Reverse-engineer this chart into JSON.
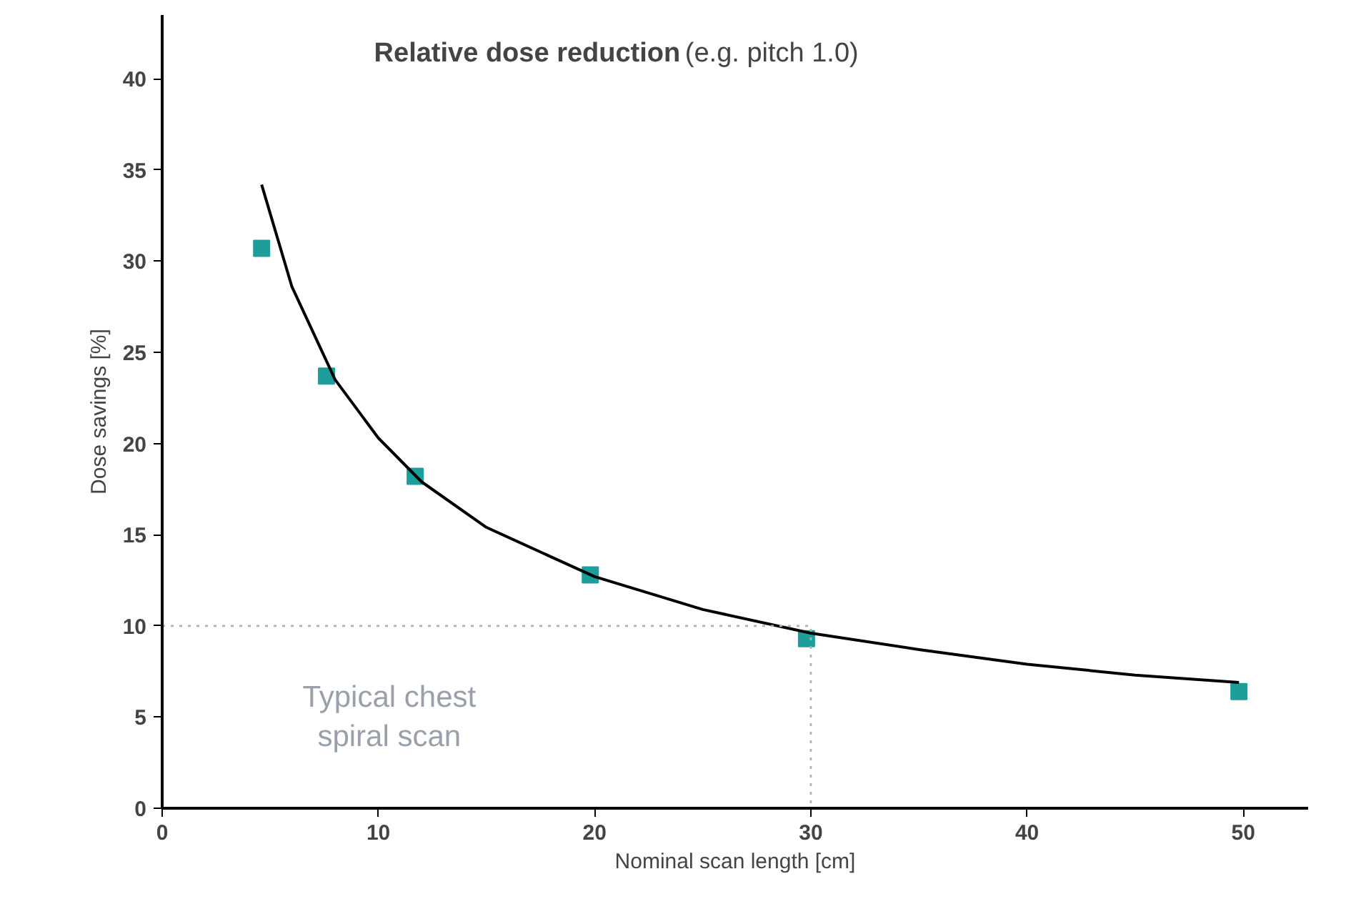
{
  "chart_data": {
    "type": "scatter",
    "title": "Relative dose reduction",
    "subtitle": "(e.g. pitch 1.0)",
    "xlabel": "Nominal scan length [cm]",
    "ylabel": "Dose savings [%]",
    "xlim": [
      0,
      53
    ],
    "ylim": [
      0,
      43.5
    ],
    "xticks": [
      0,
      10,
      20,
      30,
      40,
      50
    ],
    "yticks": [
      0,
      5,
      10,
      15,
      20,
      25,
      30,
      35,
      40
    ],
    "grid": false,
    "marker": "square",
    "annotations": [
      "Typical chest\nspiral scan"
    ],
    "series": [
      {
        "color": "#1e9e9a",
        "x": [
          4.6,
          7.6,
          11.7,
          19.8,
          29.8,
          49.8
        ],
        "values": [
          30.7,
          23.7,
          18.2,
          12.8,
          9.3,
          6.4
        ]
      },
      {
        "type": "line",
        "color": "#000000",
        "line_style": "solid",
        "marker": "none",
        "x": [
          4.6,
          6,
          8,
          10,
          12,
          15,
          20,
          25,
          30,
          35,
          40,
          45,
          49.8
        ],
        "values": [
          34.2,
          28.6,
          23.5,
          20.3,
          17.9,
          15.4,
          12.7,
          10.9,
          9.6,
          8.7,
          7.9,
          7.3,
          6.9
        ]
      },
      {
        "type": "line",
        "color": "#b0b0b0",
        "line_style": "dotted",
        "marker": "none",
        "x": [
          0,
          30,
          30
        ],
        "values": [
          10,
          10,
          0
        ]
      }
    ]
  }
}
